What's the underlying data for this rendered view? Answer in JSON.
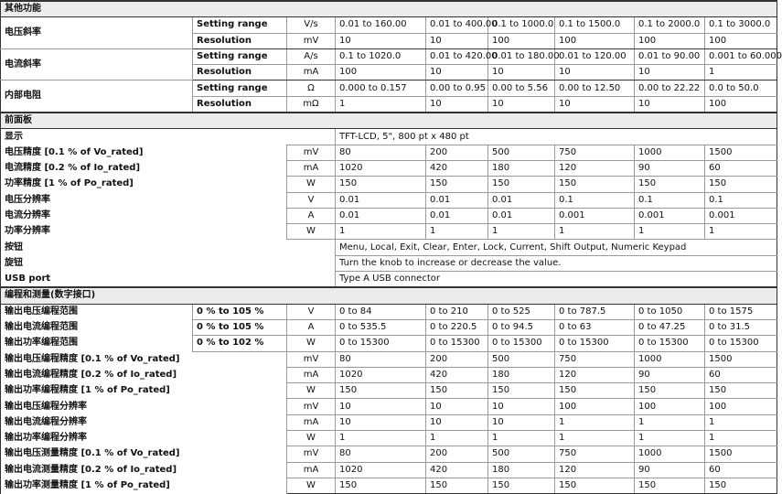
{
  "sections": [
    {
      "title": "其他功能",
      "kind": "params",
      "groups": [
        {
          "label": "电压斜率",
          "rows": [
            {
              "param": "Setting range",
              "unit": "V/s",
              "values": [
                "0.01 to 160.00",
                "0.01 to 400.00",
                "0.1 to 1000.0",
                "0.1 to 1500.0",
                "0.1 to 2000.0",
                "0.1 to 3000.0"
              ]
            },
            {
              "param": "Resolution",
              "unit": "mV",
              "values": [
                "10",
                "10",
                "100",
                "100",
                "100",
                "100"
              ]
            }
          ]
        },
        {
          "label": "电流斜率",
          "rows": [
            {
              "param": "Setting range",
              "unit": "A/s",
              "values": [
                "0.1 to 1020.0",
                "0.01 to 420.00",
                "0.01 to 180.00",
                "0.01 to 120.00",
                "0.01 to 90.00",
                "0.001 to 60.000"
              ]
            },
            {
              "param": "Resolution",
              "unit": "mA",
              "values": [
                "100",
                "10",
                "10",
                "10",
                "10",
                "1"
              ]
            }
          ]
        },
        {
          "label": "内部电阻",
          "rows": [
            {
              "param": "Setting range",
              "unit": "Ω",
              "values": [
                "0.000 to 0.157",
                "0.00 to 0.95",
                "0.00 to 5.56",
                "0.00 to 12.50",
                "0.00 to 22.22",
                "0.0 to 50.0"
              ]
            },
            {
              "param": "Resolution",
              "unit": "mΩ",
              "values": [
                "1",
                "10",
                "10",
                "10",
                "10",
                "100"
              ]
            }
          ]
        }
      ]
    },
    {
      "title": "前面板",
      "kind": "panel",
      "rows": [
        {
          "label": "显示",
          "text": "TFT-LCD, 5\", 800 pt x 480 pt"
        },
        {
          "label": "电压精度 [0.1 % of Vo_rated]",
          "unit": "mV",
          "values": [
            "80",
            "200",
            "500",
            "750",
            "1000",
            "1500"
          ]
        },
        {
          "label": "电流精度 [0.2 % of Io_rated]",
          "unit": "mA",
          "values": [
            "1020",
            "420",
            "180",
            "120",
            "90",
            "60"
          ]
        },
        {
          "label": "功率精度 [1 % of Po_rated]",
          "unit": "W",
          "values": [
            "150",
            "150",
            "150",
            "150",
            "150",
            "150"
          ]
        },
        {
          "label": "电压分辨率",
          "unit": "V",
          "values": [
            "0.01",
            "0.01",
            "0.01",
            "0.1",
            "0.1",
            "0.1"
          ]
        },
        {
          "label": "电流分辨率",
          "unit": "A",
          "values": [
            "0.01",
            "0.01",
            "0.01",
            "0.001",
            "0.001",
            "0.001"
          ]
        },
        {
          "label": "功率分辨率",
          "unit": "W",
          "values": [
            "1",
            "1",
            "1",
            "1",
            "1",
            "1"
          ]
        },
        {
          "label": "按钮",
          "text": "Menu, Local, Exit, Clear, Enter, Lock, Current, Shift Output, Numeric Keypad"
        },
        {
          "label": "旋钮",
          "text": "Turn the knob to increase or decrease the value."
        },
        {
          "label": "USB port",
          "text": "Type A USB connector"
        }
      ]
    },
    {
      "title": "编程和测量(数字接口)",
      "kind": "prog",
      "rows": [
        {
          "label": "输出电压编程范围",
          "range": "0 % to 105 %",
          "unit": "V",
          "values": [
            "0 to 84",
            "0 to 210",
            "0 to 525",
            "0 to 787.5",
            "0 to 1050",
            "0 to 1575"
          ]
        },
        {
          "label": "输出电流编程范围",
          "range": "0 % to 105 %",
          "unit": "A",
          "values": [
            "0 to 535.5",
            "0 to 220.5",
            "0 to 94.5",
            "0 to 63",
            "0 to 47.25",
            "0 to 31.5"
          ]
        },
        {
          "label": "输出功率编程范围",
          "range": "0 % to 102 %",
          "unit": "W",
          "values": [
            "0 to 15300",
            "0 to 15300",
            "0 to 15300",
            "0 to 15300",
            "0 to 15300",
            "0 to 15300"
          ]
        },
        {
          "label": "输出电压编程精度 [0.1 % of Vo_rated]",
          "unit": "mV",
          "values": [
            "80",
            "200",
            "500",
            "750",
            "1000",
            "1500"
          ]
        },
        {
          "label": "输出电流编程精度 [0.2 % of Io_rated]",
          "unit": "mA",
          "values": [
            "1020",
            "420",
            "180",
            "120",
            "90",
            "60"
          ]
        },
        {
          "label": "输出功率编程精度 [1 % of Po_rated]",
          "unit": "W",
          "values": [
            "150",
            "150",
            "150",
            "150",
            "150",
            "150"
          ]
        },
        {
          "label": "输出电压编程分辨率",
          "unit": "mV",
          "values": [
            "10",
            "10",
            "10",
            "100",
            "100",
            "100"
          ]
        },
        {
          "label": "输出电流编程分辨率",
          "unit": "mA",
          "values": [
            "10",
            "10",
            "10",
            "1",
            "1",
            "1"
          ]
        },
        {
          "label": "输出功率编程分辨率",
          "unit": "W",
          "values": [
            "1",
            "1",
            "1",
            "1",
            "1",
            "1"
          ]
        },
        {
          "label": "输出电压测量精度 [0.1 % of Vo_rated]",
          "unit": "mV",
          "values": [
            "80",
            "200",
            "500",
            "750",
            "1000",
            "1500"
          ]
        },
        {
          "label": "输出电流测量精度 [0.2 % of Io_rated]",
          "unit": "mA",
          "values": [
            "1020",
            "420",
            "180",
            "120",
            "90",
            "60"
          ]
        },
        {
          "label": "输出功率测量精度 [1 % of Po_rated]",
          "unit": "W",
          "values": [
            "150",
            "150",
            "150",
            "150",
            "150",
            "150"
          ]
        }
      ]
    }
  ]
}
